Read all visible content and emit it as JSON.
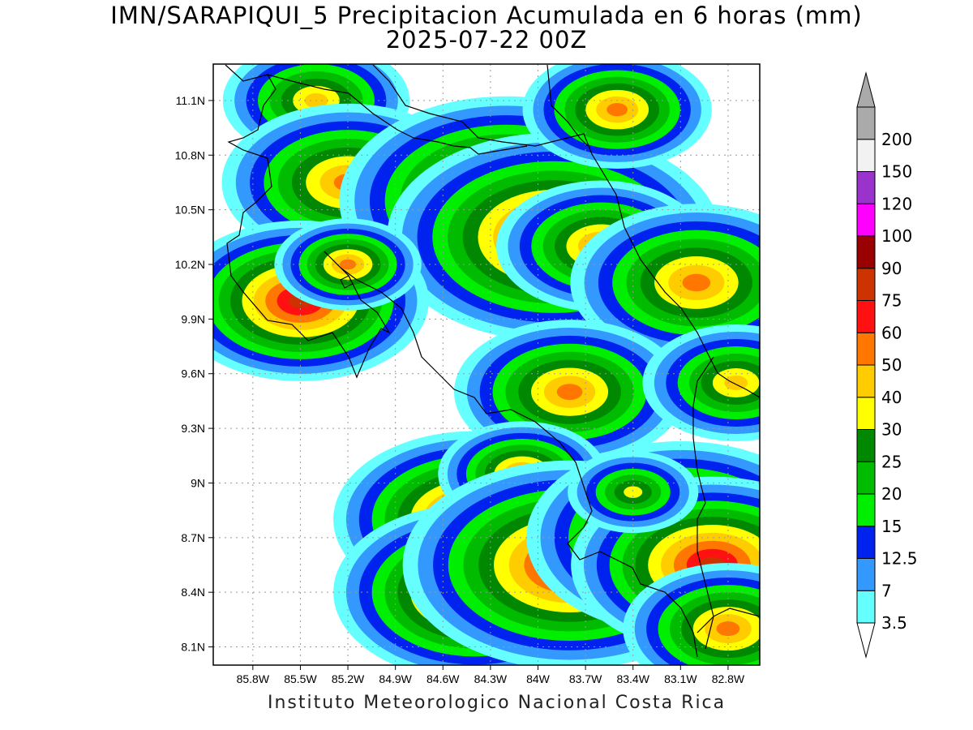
{
  "title": {
    "line1": "IMN/SARAPIQUI_5 Precipitacion Acumulada en 6 horas (mm)",
    "line2": "2025-07-22 00Z"
  },
  "footer": "Instituto Meteorologico Nacional Costa Rica",
  "axes": {
    "x_ticks": [
      "85.8W",
      "85.5W",
      "85.2W",
      "84.9W",
      "84.6W",
      "84.3W",
      "84W",
      "83.7W",
      "83.4W",
      "83.1W",
      "82.8W"
    ],
    "y_ticks": [
      "11.1N",
      "10.8N",
      "10.5N",
      "10.2N",
      "9.9N",
      "9.6N",
      "9.3N",
      "9N",
      "8.7N",
      "8.4N",
      "8.1N"
    ],
    "lon_range": [
      -86.05,
      -82.6
    ],
    "lat_range": [
      8.0,
      11.3
    ],
    "grid": true
  },
  "colorbar": {
    "labels": [
      "3.5",
      "7",
      "12.5",
      "15",
      "20",
      "25",
      "30",
      "40",
      "50",
      "60",
      "75",
      "90",
      "100",
      "120",
      "150",
      "200"
    ],
    "colors": [
      "#66ffff",
      "#3399ff",
      "#0022ee",
      "#00ee00",
      "#00bb00",
      "#008800",
      "#ffff00",
      "#ffcc00",
      "#ff7700",
      "#ff1111",
      "#cc3300",
      "#990000",
      "#ff00ff",
      "#9933cc",
      "#f2f2f2",
      "#aaaaaa"
    ]
  },
  "precip_cells": [
    {
      "lon": -85.4,
      "lat": 11.1,
      "level": 7,
      "spread": 1.0
    },
    {
      "lon": -85.2,
      "lat": 10.65,
      "level": 8,
      "spread": 1.2
    },
    {
      "lon": -84.2,
      "lat": 10.55,
      "level": 10,
      "spread": 1.3
    },
    {
      "lon": -83.9,
      "lat": 10.35,
      "level": 10,
      "spread": 1.3
    },
    {
      "lon": -83.6,
      "lat": 10.3,
      "level": 8,
      "spread": 1.0
    },
    {
      "lon": -83.0,
      "lat": 10.1,
      "level": 8,
      "spread": 1.2
    },
    {
      "lon": -83.5,
      "lat": 11.05,
      "level": 8,
      "spread": 0.9
    },
    {
      "lon": -85.5,
      "lat": 10.0,
      "level": 10,
      "spread": 1.0
    },
    {
      "lon": -85.2,
      "lat": 10.2,
      "level": 8,
      "spread": 0.7
    },
    {
      "lon": -83.8,
      "lat": 9.5,
      "level": 8,
      "spread": 1.1
    },
    {
      "lon": -84.4,
      "lat": 8.8,
      "level": 10,
      "spread": 1.1
    },
    {
      "lon": -84.1,
      "lat": 9.05,
      "level": 8,
      "spread": 0.8
    },
    {
      "lon": -84.4,
      "lat": 8.4,
      "level": 10,
      "spread": 1.1
    },
    {
      "lon": -83.8,
      "lat": 8.55,
      "level": 10,
      "spread": 1.3
    },
    {
      "lon": -83.1,
      "lat": 8.7,
      "level": 10,
      "spread": 1.2
    },
    {
      "lon": -82.9,
      "lat": 8.55,
      "level": 10,
      "spread": 1.1
    },
    {
      "lon": -82.8,
      "lat": 8.2,
      "level": 8,
      "spread": 1.0
    },
    {
      "lon": -82.75,
      "lat": 9.55,
      "level": 7,
      "spread": 1.0
    },
    {
      "lon": -83.4,
      "lat": 8.95,
      "level": 6,
      "spread": 0.8
    }
  ]
}
